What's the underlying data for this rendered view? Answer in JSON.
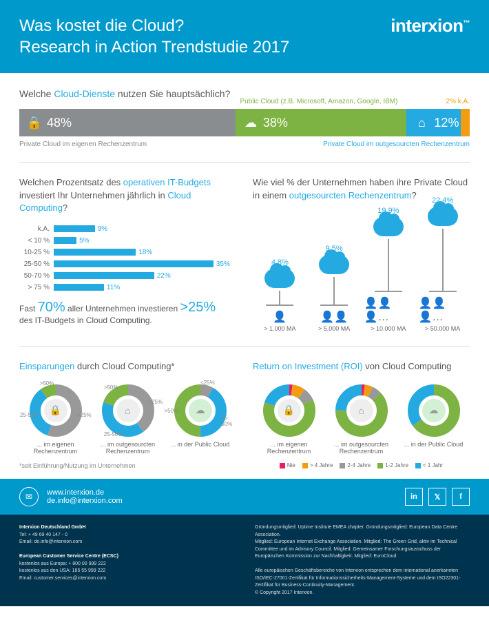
{
  "header": {
    "title_l1": "Was kostet die Cloud?",
    "title_l2": "Research in Action Trendstudie 2017",
    "logo": "interxion"
  },
  "q1": {
    "title_pre": "Welche ",
    "title_hl": "Cloud-Dienste",
    "title_post": " nutzen Sie hauptsächlich?",
    "above_green": "Public Cloud (z.B. Microsoft, Amazon, Google, IBM)",
    "above_orange": "2% k.A.",
    "segments": [
      {
        "pct": 48,
        "label": "48%",
        "color": "#8a8d8f",
        "icon": "lock"
      },
      {
        "pct": 38,
        "label": "38%",
        "color": "#7cb342",
        "icon": "cloud"
      },
      {
        "pct": 12,
        "label": "12%",
        "color": "#24aae1",
        "icon": "house"
      },
      {
        "pct": 2,
        "label": "",
        "color": "#f39c12",
        "icon": ""
      }
    ],
    "below_left": "Private Cloud im eigenen Rechenzentrum",
    "below_right": "Private Cloud im outgesourcten Rechenzentrum"
  },
  "q2": {
    "title_a": "Welchen Prozentsatz des ",
    "title_b": "operativen IT-Budgets",
    "title_c": " investiert Ihr Unternehmen jährlich in ",
    "title_d": "Cloud Computing",
    "title_e": "?",
    "bars": [
      {
        "label": "k.A.",
        "value": 9
      },
      {
        "label": "< 10 %",
        "value": 5
      },
      {
        "label": "10-25 %",
        "value": 18
      },
      {
        "label": "25-50 %",
        "value": 35
      },
      {
        "label": "50-70 %",
        "value": 22
      },
      {
        "label": "> 75 %",
        "value": 11
      }
    ],
    "bar_color": "#24aae1",
    "max": 40,
    "callout_a": "Fast ",
    "callout_b": "70%",
    "callout_c": " aller Unternehmen investieren ",
    "callout_d": ">25%",
    "callout_e": "des IT-Budgets in Cloud Computing."
  },
  "q3": {
    "title_a": "Wie viel % der Unternehmen haben ihre Private Cloud in einem ",
    "title_b": "outgesourcten Rechenzentrum",
    "title_c": "?",
    "items": [
      {
        "value": "4,8%",
        "stem": 20,
        "label": "> 1.000 MA",
        "people": 1
      },
      {
        "value": "9,5%",
        "stem": 40,
        "label": "> 5.000 MA",
        "people": 2
      },
      {
        "value": "19,9%",
        "stem": 75,
        "label": "> 10.000 MA",
        "people": 4
      },
      {
        "value": "22,4%",
        "stem": 90,
        "label": "> 50.000 MA",
        "people": 5
      }
    ]
  },
  "q4": {
    "title_a": "Einsparungen",
    "title_b": " durch Cloud Computing*",
    "donuts": [
      {
        "caption": "... im eigenen Rechenzentrum",
        "center_bg": "#eee",
        "icon": "🔒",
        "slices": [
          {
            "c": "#999",
            "p": 55,
            "l": "<25%"
          },
          {
            "c": "#24aae1",
            "p": 35,
            "l": "25-50%"
          },
          {
            "c": "#7cb342",
            "p": 10,
            "l": ">50%"
          }
        ]
      },
      {
        "caption": "... im outgesourcten Rechenzentrum",
        "center_bg": "#eee",
        "icon": "⌂",
        "slices": [
          {
            "c": "#999",
            "p": 40,
            "l": "<25%"
          },
          {
            "c": "#24aae1",
            "p": 40,
            "l": "25-50%"
          },
          {
            "c": "#7cb342",
            "p": 20,
            "l": ">50%"
          }
        ]
      },
      {
        "caption": "... in der Public Cloud",
        "center_bg": "#d4f0d4",
        "icon": "☁",
        "slices": [
          {
            "c": "#999",
            "p": 8,
            "l": "<25%"
          },
          {
            "c": "#24aae1",
            "p": 42,
            "l": "25-50%"
          },
          {
            "c": "#7cb342",
            "p": 50,
            "l": ">50%"
          }
        ]
      }
    ],
    "footnote": "*seit Einführung/Nutzung im Unternehmen"
  },
  "q5": {
    "title_a": "Return on Investment (ROI)",
    "title_b": " von Cloud Computing",
    "donuts": [
      {
        "caption": "... im eigenen Rechenzentrum",
        "center_bg": "#eee",
        "icon": "🔒",
        "slices": [
          {
            "c": "#e91e63",
            "p": 2
          },
          {
            "c": "#f39c12",
            "p": 8
          },
          {
            "c": "#999",
            "p": 8
          },
          {
            "c": "#7cb342",
            "p": 62
          },
          {
            "c": "#24aae1",
            "p": 20
          }
        ]
      },
      {
        "caption": "... im outgesourcten Rechenzentrum",
        "center_bg": "#eee",
        "icon": "⌂",
        "slices": [
          {
            "c": "#e91e63",
            "p": 2
          },
          {
            "c": "#f39c12",
            "p": 5
          },
          {
            "c": "#999",
            "p": 6
          },
          {
            "c": "#7cb342",
            "p": 62
          },
          {
            "c": "#24aae1",
            "p": 25
          }
        ]
      },
      {
        "caption": "... in der Public Cloud",
        "center_bg": "#d4f0d4",
        "icon": "☁",
        "slices": [
          {
            "c": "#7cb342",
            "p": 65
          },
          {
            "c": "#24aae1",
            "p": 35
          }
        ]
      }
    ],
    "legend": [
      {
        "c": "#e91e63",
        "l": "Nie"
      },
      {
        "c": "#f39c12",
        "l": "> 4 Jahre"
      },
      {
        "c": "#999",
        "l": "2-4 Jahre"
      },
      {
        "c": "#7cb342",
        "l": "1-2 Jahre"
      },
      {
        "c": "#24aae1",
        "l": "< 1 Jahr"
      }
    ]
  },
  "footer1": {
    "url": "www.interxion.de",
    "email": "de.info@interxion.com"
  },
  "footer2": {
    "left": {
      "company": "Interxion Deutschland GmbH",
      "tel": "Tel: + 49 69 40 147 - 0",
      "email1": "Email: de.info@interxion.com",
      "ecsc": "European Customer Service Centre (ECSC)",
      "eu": "kostenlos aus Europa: + 800 00 999 222",
      "us": "kostenlos aus den USA: 185 55 999 222",
      "email2": "Email: customer.services@interxion.com"
    },
    "right": {
      "l1": "Gründungsmitglied: Uptime Institute EMEA chapter. Gründungsmitglied: European Data Centre Association.",
      "l2": "Mitglied: European Internet Exchange Association. Mitglied: The Green Grid, aktiv im Technical Committee und im Advisory Council. Mitglied: Gemeinsamer Forschungsausschuss der Europäischen Kommission zur Nachhaltigkeit. Mitglied: EuroCloud.",
      "l3": "Alle europäischen Geschäftsbereiche von Interxion entsprechen dem international anerkannten ISO/IEC-27001-Zertifikat für Informationssicherheits-Management-Systeme und dem ISO22301-Zertifikat für Business-Continuity-Management.",
      "l4": "© Copyright 2017 Interxion."
    }
  }
}
